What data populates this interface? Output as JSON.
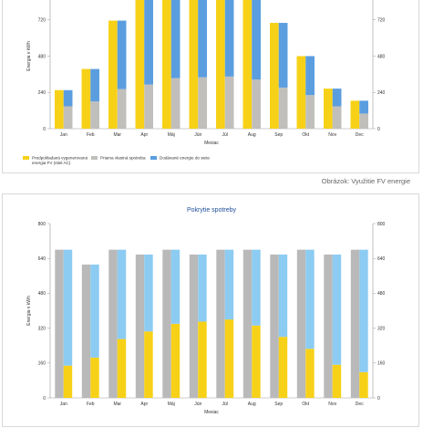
{
  "caption": "Obrázok: Využitie FV energie",
  "chart_data": [
    {
      "type": "bar",
      "title": "",
      "xlabel": "Mesiac",
      "ylabel": "Energia v kWh",
      "ylim": [
        0,
        960
      ],
      "yticks": [
        0,
        240,
        480,
        720
      ],
      "y2ticks": [
        0,
        240,
        480,
        720
      ],
      "stacked_pair": true,
      "grid": false,
      "legend_position": "bottom-left",
      "categories": [
        "Jan",
        "Feb",
        "Mar",
        "Apr",
        "Máj",
        "Jún",
        "Júl",
        "Aug",
        "Sep",
        "Okt",
        "Nov",
        "Dec"
      ],
      "series": [
        {
          "name": "Predpokladaná vygenerovaná energia FV (stiel AC)",
          "color": "#f7d117",
          "values": [
            255,
            395,
            715,
            865,
            950,
            930,
            940,
            880,
            700,
            480,
            265,
            185
          ]
        },
        {
          "name": "Priama vlastná spotreba",
          "color": "#c0bfbc",
          "values": [
            148,
            180,
            262,
            292,
            335,
            340,
            345,
            325,
            272,
            222,
            148,
            100
          ]
        },
        {
          "name": "Dodávané energie do siete",
          "color": "#5b9ee0",
          "values": [
            107,
            215,
            453,
            573,
            615,
            590,
            595,
            555,
            428,
            258,
            117,
            85
          ]
        }
      ],
      "legend": {
        "item1_line1": "Predpokladaná vygenerovaná",
        "item1_line2": "energia FV  (stiel AC)",
        "item2": "Priama vlastná spotreba",
        "item3": "Dodávané energie do siete"
      }
    },
    {
      "type": "bar",
      "title": "Pokrytie spotreby",
      "xlabel": "Mesiac",
      "ylabel": "Energia v kWh",
      "ylim": [
        0,
        800
      ],
      "yticks": [
        0,
        160,
        320,
        480,
        640,
        800
      ],
      "y2ticks": [
        0,
        160,
        320,
        480,
        640,
        800
      ],
      "grid": false,
      "categories": [
        "Jan",
        "Feb",
        "Mar",
        "Apr",
        "Máj",
        "Jún",
        "Júl",
        "Aug",
        "Sep",
        "Okt",
        "Nov",
        "Dec"
      ],
      "series": [
        {
          "name": "",
          "color": "#b9b9b9",
          "values": [
            680,
            612,
            680,
            658,
            680,
            658,
            680,
            680,
            658,
            680,
            658,
            680
          ]
        },
        {
          "name": "",
          "color": "#f7d117",
          "values": [
            148,
            185,
            270,
            305,
            340,
            350,
            360,
            332,
            280,
            225,
            152,
            118
          ]
        },
        {
          "name": "",
          "color": "#8ccbf2",
          "values": [
            532,
            427,
            410,
            353,
            340,
            308,
            320,
            348,
            378,
            455,
            506,
            562
          ]
        }
      ]
    }
  ]
}
